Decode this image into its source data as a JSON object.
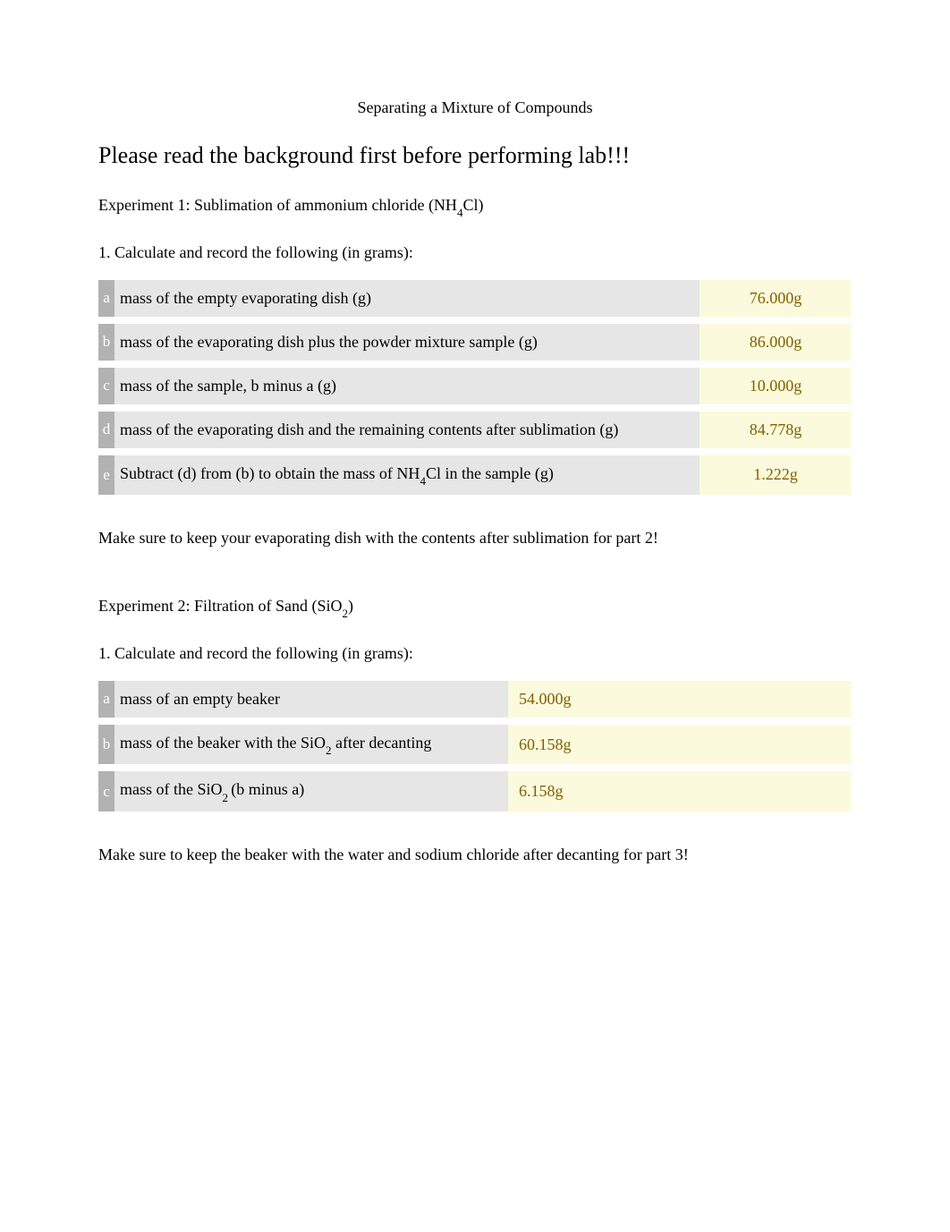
{
  "title": "Separating a Mixture of Compounds",
  "warning": "Please read the background first before performing lab!!!",
  "exp1": {
    "heading_prefix": "Experiment 1:  Sublimation of ammonium chloride (NH",
    "heading_sub": "4",
    "heading_suffix": "Cl)",
    "step1": "1. Calculate and record the following (in grams):",
    "rows": [
      {
        "letter": "a",
        "label": "mass of the empty evaporating dish (g)",
        "value": "76.000g"
      },
      {
        "letter": "b",
        "label": "mass of the evaporating dish plus the powder mixture sample (g)",
        "value": "86.000g"
      },
      {
        "letter": "c",
        "label": "mass of the sample, b minus a (g)",
        "value": "10.000g"
      },
      {
        "letter": "d",
        "label": "mass of the evaporating dish and the remaining contents after sublimation (g)",
        "value": "84.778g"
      },
      {
        "letter": "e",
        "label_prefix": "Subtract (d) from (b) to obtain the mass of NH",
        "label_sub": "4",
        "label_suffix": "Cl in the sample (g)",
        "value": "1.222g"
      }
    ],
    "note": "Make sure to keep your evaporating dish with the contents after sublimation for part 2!"
  },
  "exp2": {
    "heading_prefix": "Experiment 2: Filtration of Sand (SiO",
    "heading_sub": "2",
    "heading_suffix": ")",
    "step1": "1. Calculate and record the following (in grams):",
    "rows": [
      {
        "letter": "a",
        "label": "mass of an empty beaker",
        "value": "54.000g"
      },
      {
        "letter": "b",
        "label_prefix": "mass of the beaker with the SiO",
        "label_sub": "2",
        "label_suffix": " after decanting",
        "value": "60.158g"
      },
      {
        "letter": "c",
        "label_prefix": "mass of the SiO",
        "label_sub": "2 ",
        "label_suffix": "(b minus a)",
        "value": "6.158g"
      }
    ],
    "note": "Make sure to keep the beaker with the water and sodium chloride after decanting for part 3!"
  },
  "colors": {
    "letter_bg": "#b2b2b2",
    "letter_fg": "#ffffff",
    "label_bg": "#e6e6e6",
    "value_bg": "#fbfadc",
    "value_fg": "#806000",
    "text": "#000000",
    "page_bg": "#ffffff"
  },
  "typography": {
    "title_size_pt": 14,
    "warning_size_pt": 20,
    "body_size_pt": 14,
    "font_family": "Times New Roman"
  }
}
